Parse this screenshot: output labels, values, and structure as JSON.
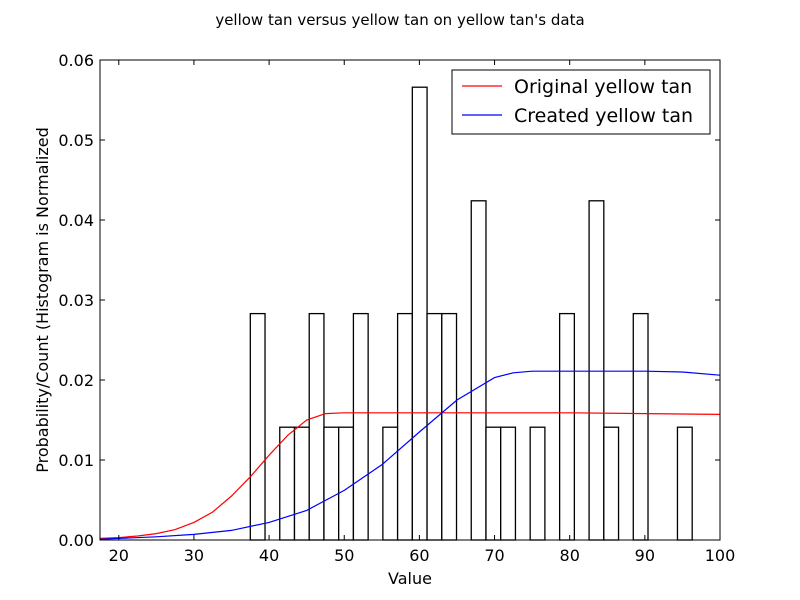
{
  "chart_data": {
    "type": "histogram_with_lines",
    "title": "yellow tan versus yellow tan on yellow tan's data",
    "xlabel": "Value",
    "ylabel": "Probability/Count (Histogram is Normalized",
    "xlim": [
      17.5,
      100
    ],
    "ylim": [
      0,
      0.06
    ],
    "xticks": [
      20,
      30,
      40,
      50,
      60,
      70,
      80,
      90,
      100
    ],
    "yticks": [
      0.0,
      0.01,
      0.02,
      0.03,
      0.04,
      0.05,
      0.06
    ],
    "ytick_labels": [
      "0.00",
      "0.01",
      "0.02",
      "0.03",
      "0.04",
      "0.05",
      "0.06"
    ],
    "legend_position": "top-right",
    "histogram": {
      "bin_start": 37.5,
      "bin_width": 1.96,
      "values": [
        0.0283,
        0,
        0.0141,
        0.0141,
        0.0283,
        0.0141,
        0.0141,
        0.0283,
        0,
        0.0141,
        0.0283,
        0.0566,
        0.0283,
        0.0283,
        0,
        0.0424,
        0.0141,
        0.0141,
        0,
        0.0141,
        0,
        0.0283,
        0,
        0.0424,
        0.0141,
        0,
        0.0283,
        0,
        0,
        0.0141
      ]
    },
    "series": [
      {
        "name": "Original yellow tan",
        "color": "#ff0000",
        "x": [
          17.5,
          20,
          22.5,
          25,
          27.5,
          30,
          32.5,
          35,
          37.5,
          40,
          42.5,
          45,
          47.5,
          50,
          55,
          60,
          65,
          70,
          80,
          90,
          100
        ],
        "y": [
          0.0002,
          0.0003,
          0.0005,
          0.0008,
          0.0013,
          0.0022,
          0.0035,
          0.0055,
          0.0079,
          0.0106,
          0.0131,
          0.015,
          0.0158,
          0.0159,
          0.0159,
          0.0159,
          0.0159,
          0.0159,
          0.0159,
          0.0158,
          0.0157
        ]
      },
      {
        "name": "Created yellow tan",
        "color": "#0000ff",
        "x": [
          17.5,
          20,
          25,
          30,
          35,
          40,
          45,
          50,
          55,
          60,
          65,
          70,
          72.5,
          75,
          80,
          85,
          90,
          95,
          100
        ],
        "y": [
          0.0001,
          0.0002,
          0.0004,
          0.0007,
          0.0012,
          0.0022,
          0.0037,
          0.0062,
          0.0094,
          0.0135,
          0.0175,
          0.0203,
          0.0209,
          0.0211,
          0.0211,
          0.0211,
          0.0211,
          0.021,
          0.0206
        ]
      }
    ]
  }
}
